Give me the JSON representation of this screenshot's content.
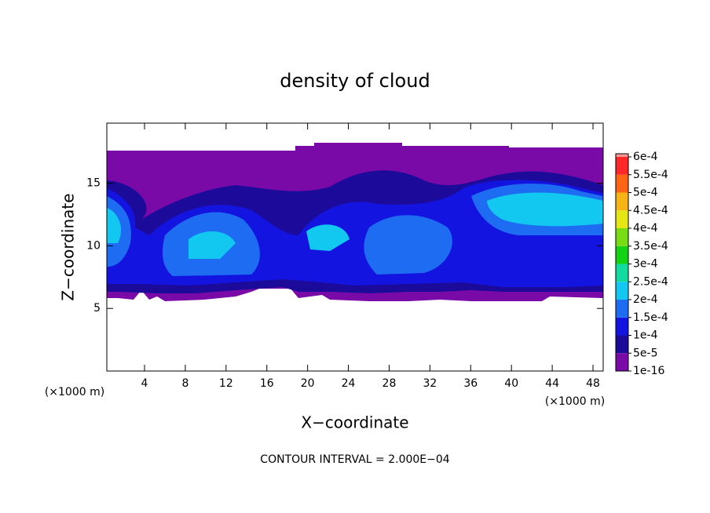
{
  "chart_data": {
    "type": "contour",
    "title": "density of cloud",
    "xlabel": "X−coordinate",
    "ylabel": "Z−coordinate",
    "x_unit_left": "(×1000 m)",
    "x_unit_right": "(×1000 m)",
    "footnote": "CONTOUR INTERVAL = 2.000E−04",
    "xlim": [
      0.3,
      49.0
    ],
    "ylim": [
      0,
      19.8
    ],
    "xticks": [
      4,
      8,
      12,
      16,
      20,
      24,
      28,
      32,
      36,
      40,
      44,
      48
    ],
    "yticks": [
      5,
      10,
      15
    ],
    "colorbar": {
      "ticks": [
        {
          "value": 1e-16,
          "label": "1e-16"
        },
        {
          "value": 5e-05,
          "label": "5e-5"
        },
        {
          "value": 0.0001,
          "label": "1e-4"
        },
        {
          "value": 0.00015,
          "label": "1.5e-4"
        },
        {
          "value": 0.0002,
          "label": "2e-4"
        },
        {
          "value": 0.00025,
          "label": "2.5e-4"
        },
        {
          "value": 0.0003,
          "label": "3e-4"
        },
        {
          "value": 0.00035,
          "label": "3.5e-4"
        },
        {
          "value": 0.0004,
          "label": "4e-4"
        },
        {
          "value": 0.00045,
          "label": "4.5e-4"
        },
        {
          "value": 0.0005,
          "label": "5e-4"
        },
        {
          "value": 0.00055,
          "label": "5.5e-4"
        },
        {
          "value": 0.0006,
          "label": "6e-4"
        }
      ],
      "colors": [
        "#7a0aa8",
        "#1c0a9a",
        "#1414e0",
        "#1e6cf2",
        "#12c8f0",
        "#10dca0",
        "#14d214",
        "#78dc14",
        "#e6e614",
        "#f5b414",
        "#ff6414",
        "#ff2828",
        "#ff9696"
      ]
    }
  }
}
